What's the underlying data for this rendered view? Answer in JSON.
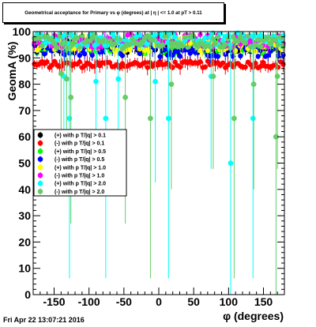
{
  "window_title": "Geometrical acceptance for Primary vs φ (degrees) at | η | <= 1.0 at pT > 0.11",
  "timestamp": "Fri Apr 22 13:07:21 2016",
  "chart_data": {
    "type": "scatter",
    "title": "Geometrical acceptance for Primary vs φ (degrees) at | η | <= 1.0 at pT > 0.11",
    "xlabel": "φ (degrees)",
    "ylabel": "GeomA (%)",
    "xlim": [
      -180,
      180
    ],
    "ylim": [
      0,
      100
    ],
    "x_ticks": [
      -150,
      -100,
      -50,
      0,
      50,
      100,
      150
    ],
    "y_ticks": [
      0,
      10,
      20,
      30,
      40,
      50,
      60,
      70,
      80,
      90,
      100
    ],
    "legend_position": "left-middle",
    "series": [
      {
        "name": "(+) with p T/|q| > 0.1",
        "color": "#000000",
        "level": 94.5
      },
      {
        "name": "(-) with p T/|q| > 0.1",
        "color": "#ff0000",
        "level": 87.5
      },
      {
        "name": "(+) with p T/|q| > 0.5",
        "color": "#00ff00",
        "level": 94.0
      },
      {
        "name": "(-) with p T/|q| > 0.5",
        "color": "#0000ff",
        "level": 93.0
      },
      {
        "name": "(+) with p T/|q| > 1.0",
        "color": "#ffff00",
        "level": 95.0
      },
      {
        "name": "(-) with p T/|q| > 1.0",
        "color": "#ff00ff",
        "level": 96.5
      },
      {
        "name": "(+) with p T/|q| > 2.0",
        "color": "#00ffff",
        "level": 97.0
      },
      {
        "name": "(-) with p T/|q| > 2.0",
        "color": "#66cc66",
        "level": 96.0
      }
    ],
    "outliers": [
      {
        "series": 6,
        "x": -136,
        "y": 83
      },
      {
        "series": 6,
        "x": -128,
        "y": 67
      },
      {
        "series": 6,
        "x": -90,
        "y": 81
      },
      {
        "series": 6,
        "x": -76,
        "y": 67
      },
      {
        "series": 6,
        "x": -58,
        "y": 82
      },
      {
        "series": 6,
        "x": -5,
        "y": 81
      },
      {
        "series": 6,
        "x": 14,
        "y": 67
      },
      {
        "series": 6,
        "x": 75,
        "y": 83
      },
      {
        "series": 6,
        "x": 103,
        "y": 50
      },
      {
        "series": 6,
        "x": 135,
        "y": 67
      },
      {
        "series": 7,
        "x": -140,
        "y": 84
      },
      {
        "series": 7,
        "x": -132,
        "y": 82
      },
      {
        "series": 7,
        "x": -126,
        "y": 75
      },
      {
        "series": 7,
        "x": -48,
        "y": 75
      },
      {
        "series": 7,
        "x": -12,
        "y": 67
      },
      {
        "series": 7,
        "x": 18,
        "y": 80
      },
      {
        "series": 7,
        "x": 78,
        "y": 83
      },
      {
        "series": 7,
        "x": 108,
        "y": 67
      },
      {
        "series": 7,
        "x": 136,
        "y": 80
      },
      {
        "series": 7,
        "x": 168,
        "y": 60
      },
      {
        "series": 7,
        "x": 170,
        "y": 83
      }
    ]
  }
}
